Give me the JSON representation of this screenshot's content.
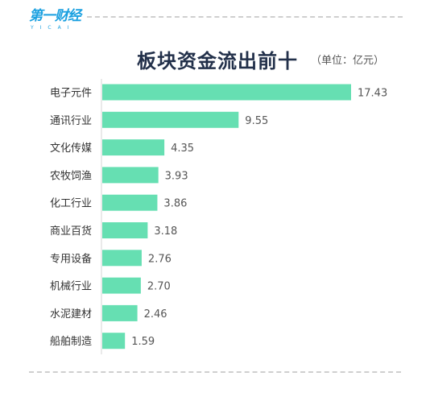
{
  "logo": {
    "text": "第一财经",
    "sub": "YICAI"
  },
  "chart_data": {
    "type": "bar",
    "orientation": "horizontal",
    "title": "板块资金流出前十",
    "unit": "（单位：亿元）",
    "categories": [
      "电子元件",
      "通讯行业",
      "文化传媒",
      "农牧饲渔",
      "化工行业",
      "商业百货",
      "专用设备",
      "机械行业",
      "水泥建材",
      "船舶制造"
    ],
    "values": [
      17.43,
      9.55,
      4.35,
      3.93,
      3.86,
      3.18,
      2.76,
      2.7,
      2.46,
      1.59
    ],
    "value_labels": [
      "17.43",
      "9.55",
      "4.35",
      "3.93",
      "3.86",
      "3.18",
      "2.76",
      "2.70",
      "2.46",
      "1.59"
    ],
    "bar_color": "#66dfb2",
    "grid": false,
    "legend": "none"
  }
}
